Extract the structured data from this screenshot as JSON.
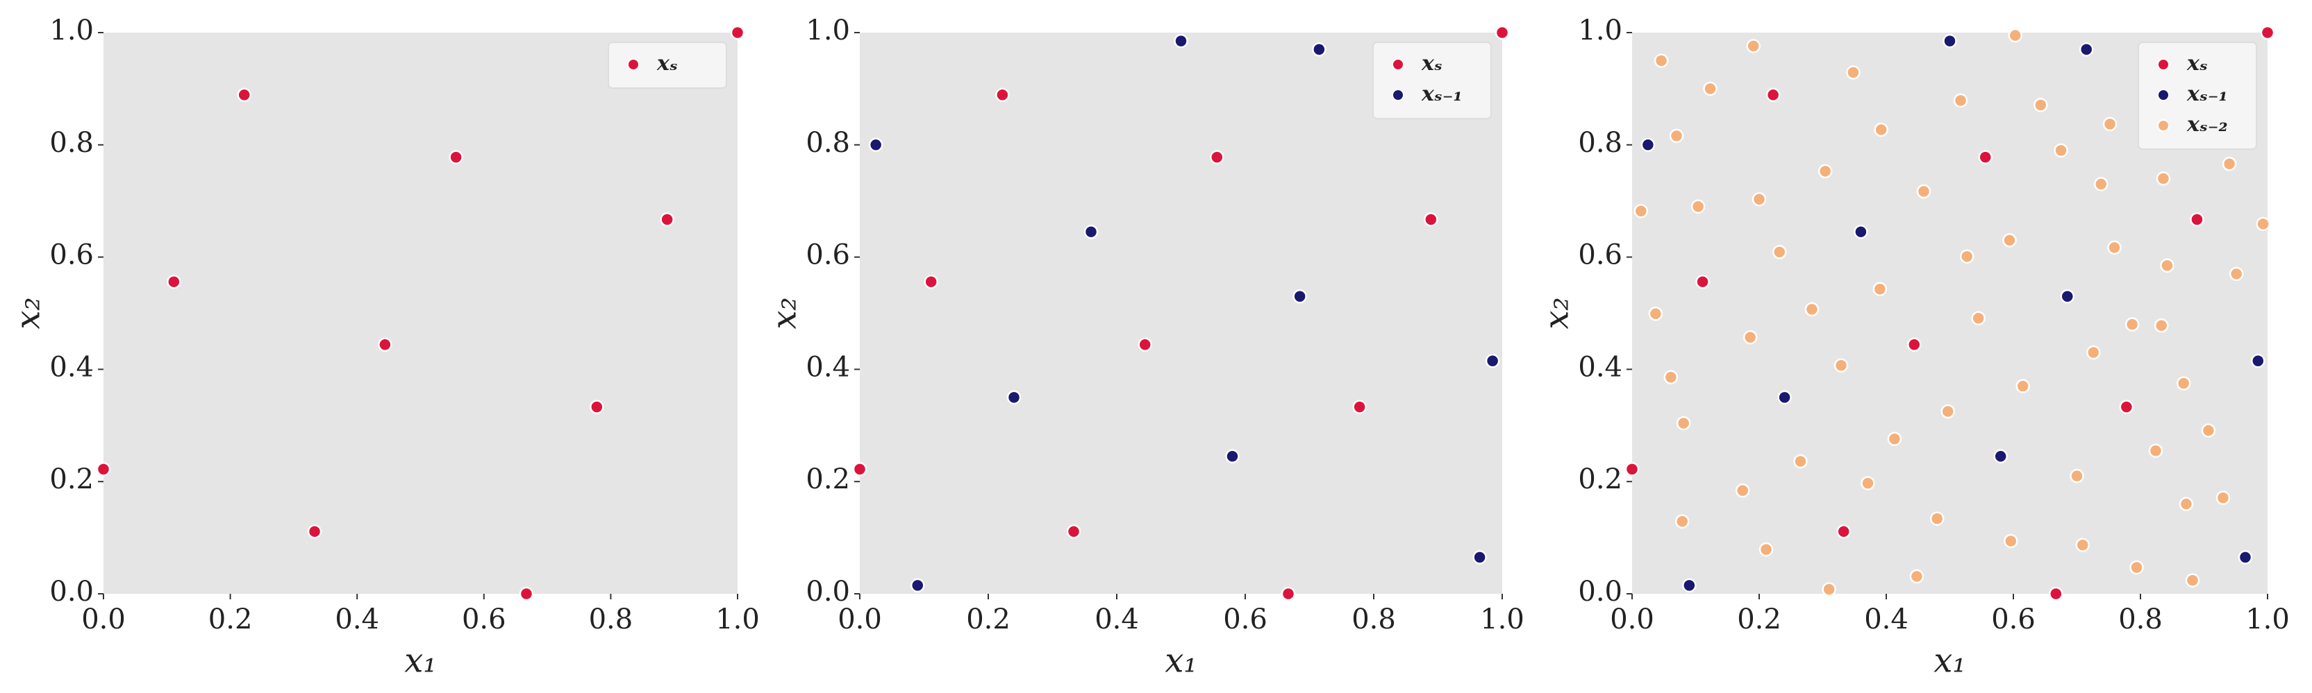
{
  "chart_data": [
    {
      "type": "scatter",
      "xlabel": "x₁",
      "ylabel": "x₂",
      "xlim": [
        0,
        1
      ],
      "ylim": [
        0,
        1
      ],
      "xticks": [
        {
          "value": 0,
          "label": "0.0"
        },
        0.2,
        0.4,
        0.6,
        0.8,
        {
          "value": 1,
          "label": "1.0"
        }
      ],
      "yticks": [
        {
          "value": 0,
          "label": "0.0"
        },
        0.2,
        0.4,
        0.6,
        0.8,
        {
          "value": 1,
          "label": "1.0"
        }
      ],
      "legend": "upper right",
      "series": [
        {
          "name": "xₛ",
          "color": "#dc143c",
          "x": [
            0,
            0.111,
            0.222,
            0.333,
            0.444,
            0.556,
            0.667,
            0.778,
            0.889,
            1.0
          ],
          "values": [
            0.222,
            0.556,
            0.889,
            0.111,
            0.444,
            0.778,
            0.0,
            0.333,
            0.667,
            1.0
          ]
        }
      ]
    },
    {
      "type": "scatter",
      "xlabel": "x₁",
      "ylabel": "x₂",
      "xlim": [
        0,
        1
      ],
      "ylim": [
        0,
        1
      ],
      "xticks": [
        {
          "value": 0,
          "label": "0.0"
        },
        0.2,
        0.4,
        0.6,
        0.8,
        {
          "value": 1,
          "label": "1.0"
        }
      ],
      "yticks": [
        {
          "value": 0,
          "label": "0.0"
        },
        0.2,
        0.4,
        0.6,
        0.8,
        {
          "value": 1,
          "label": "1.0"
        }
      ],
      "legend": "upper right",
      "series": [
        {
          "name": "xₛ",
          "color": "#dc143c",
          "x": [
            0,
            0.111,
            0.222,
            0.333,
            0.444,
            0.556,
            0.667,
            0.778,
            0.889,
            1.0
          ],
          "values": [
            0.222,
            0.556,
            0.889,
            0.111,
            0.444,
            0.778,
            0.0,
            0.333,
            0.667,
            1.0
          ]
        },
        {
          "name": "xₛ₋₁",
          "color": "#191970",
          "x": [
            0.025,
            0.09,
            0.24,
            0.36,
            0.5,
            0.58,
            0.685,
            0.715,
            0.965,
            0.985
          ],
          "values": [
            0.8,
            0.015,
            0.35,
            0.645,
            0.985,
            0.245,
            0.53,
            0.97,
            0.065,
            0.415
          ]
        }
      ]
    },
    {
      "type": "scatter",
      "xlabel": "x₁",
      "ylabel": "x₂",
      "xlim": [
        0,
        1
      ],
      "ylim": [
        0,
        1
      ],
      "xticks": [
        {
          "value": 0,
          "label": "0.0"
        },
        0.2,
        0.4,
        0.6,
        0.8,
        {
          "value": 1,
          "label": "1.0"
        }
      ],
      "yticks": [
        {
          "value": 0,
          "label": "0.0"
        },
        0.2,
        0.4,
        0.6,
        0.8,
        {
          "value": 1,
          "label": "1.0"
        }
      ],
      "legend": "upper right",
      "series": [
        {
          "name": "xₛ",
          "color": "#dc143c",
          "x": [
            0,
            0.111,
            0.222,
            0.333,
            0.444,
            0.556,
            0.667,
            0.778,
            0.889,
            1.0
          ],
          "values": [
            0.222,
            0.556,
            0.889,
            0.111,
            0.444,
            0.778,
            0.0,
            0.333,
            0.667,
            1.0
          ]
        },
        {
          "name": "xₛ₋₁",
          "color": "#191970",
          "x": [
            0.025,
            0.09,
            0.24,
            0.36,
            0.5,
            0.58,
            0.685,
            0.715,
            0.965,
            0.985
          ],
          "values": [
            0.8,
            0.015,
            0.35,
            0.645,
            0.985,
            0.245,
            0.53,
            0.97,
            0.065,
            0.415
          ]
        },
        {
          "name": "xₛ₋₂",
          "color": "#f5b07a",
          "x": [
            0.046,
            0.191,
            0.123,
            0.07,
            0.014,
            0.104,
            0.2,
            0.304,
            0.348,
            0.392,
            0.459,
            0.517,
            0.603,
            0.643,
            0.675,
            0.738,
            0.752,
            0.836,
            0.061,
            0.037,
            0.079,
            0.081,
            0.186,
            0.232,
            0.283,
            0.329,
            0.413,
            0.371,
            0.211,
            0.174,
            0.265,
            0.448,
            0.39,
            0.48,
            0.497,
            0.545,
            0.527,
            0.594,
            0.615,
            0.596,
            0.709,
            0.7,
            0.726,
            0.759,
            0.787,
            0.842,
            0.833,
            0.868,
            0.824,
            0.907,
            0.93,
            0.872,
            0.794,
            0.882,
            0.993,
            0.951,
            0.94,
            0.31
          ],
          "values": [
            0.95,
            0.976,
            0.9,
            0.816,
            0.682,
            0.69,
            0.703,
            0.753,
            0.929,
            0.827,
            0.717,
            0.879,
            0.995,
            0.871,
            0.79,
            0.73,
            0.837,
            0.74,
            0.386,
            0.499,
            0.129,
            0.304,
            0.457,
            0.609,
            0.507,
            0.407,
            0.276,
            0.197,
            0.079,
            0.184,
            0.236,
            0.031,
            0.543,
            0.134,
            0.325,
            0.491,
            0.601,
            0.63,
            0.37,
            0.094,
            0.087,
            0.21,
            0.43,
            0.617,
            0.48,
            0.585,
            0.478,
            0.375,
            0.255,
            0.291,
            0.171,
            0.16,
            0.047,
            0.024,
            0.659,
            0.57,
            0.766,
            0.008
          ]
        }
      ]
    }
  ]
}
